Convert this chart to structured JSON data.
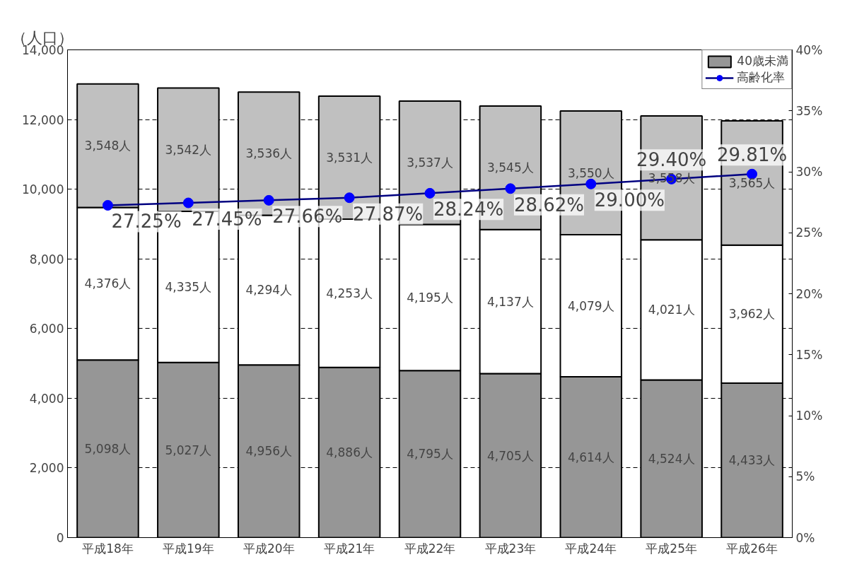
{
  "chart_data": {
    "type": "bar",
    "stacked": true,
    "ylabel": "（人口）",
    "categories": [
      "平成18年",
      "平成19年",
      "平成20年",
      "平成21年",
      "平成22年",
      "平成23年",
      "平成24年",
      "平成25年",
      "平成26年"
    ],
    "series": [
      {
        "name": "40歳未満",
        "color": "#969696",
        "values": [
          5098,
          5027,
          4956,
          4886,
          4795,
          4705,
          4614,
          4524,
          4433
        ],
        "value_labels": [
          "5,098人",
          "5,027人",
          "4,956人",
          "4,886人",
          "4,795人",
          "4,705人",
          "4,614人",
          "4,524人",
          "4,433人"
        ]
      },
      {
        "color": "#ffffff",
        "values": [
          4376,
          4335,
          4294,
          4253,
          4195,
          4137,
          4079,
          4021,
          3962
        ],
        "value_labels": [
          "4,376人",
          "4,335人",
          "4,294人",
          "4,253人",
          "4,195人",
          "4,137人",
          "4,079人",
          "4,021人",
          "3,962人"
        ]
      },
      {
        "color": "#c0c0c0",
        "values": [
          3548,
          3542,
          3536,
          3531,
          3537,
          3545,
          3550,
          3558,
          3565
        ],
        "value_labels": [
          "3,548人",
          "3,542人",
          "3,536人",
          "3,531人",
          "3,537人",
          "3,545人",
          "3,550人",
          "3,558人",
          "3,565人"
        ]
      },
      {
        "name": "高齢化率",
        "type": "line",
        "axis": "y2",
        "marker": "circle",
        "color": "#000080",
        "values": [
          27.25,
          27.45,
          27.66,
          27.87,
          28.24,
          28.62,
          29.0,
          29.4,
          29.81
        ],
        "value_labels": [
          "27.25%",
          "27.45%",
          "27.66%",
          "27.87%",
          "28.24%",
          "28.62%",
          "29.00%",
          "29.40%",
          "29.81%"
        ]
      }
    ],
    "ylim": [
      0,
      14000
    ],
    "yticks": [
      {
        "value": 0,
        "label": "0"
      },
      {
        "value": 2000,
        "label": "2,000"
      },
      {
        "value": 4000,
        "label": "4,000"
      },
      {
        "value": 6000,
        "label": "6,000"
      },
      {
        "value": 8000,
        "label": "8,000"
      },
      {
        "value": 10000,
        "label": "10,000"
      },
      {
        "value": 12000,
        "label": "12,000"
      },
      {
        "value": 14000,
        "label": "14,000"
      }
    ],
    "y2lim": [
      0,
      40
    ],
    "y2ticks": [
      {
        "value": 0,
        "label": "0%"
      },
      {
        "value": 5,
        "label": "5%"
      },
      {
        "value": 10,
        "label": "10%"
      },
      {
        "value": 15,
        "label": "15%"
      },
      {
        "value": 20,
        "label": "20%"
      },
      {
        "value": 25,
        "label": "25%"
      },
      {
        "value": 30,
        "label": "30%"
      },
      {
        "value": 35,
        "label": "35%"
      },
      {
        "value": 40,
        "label": "40%"
      }
    ],
    "grid": "y",
    "legend": "top right"
  }
}
